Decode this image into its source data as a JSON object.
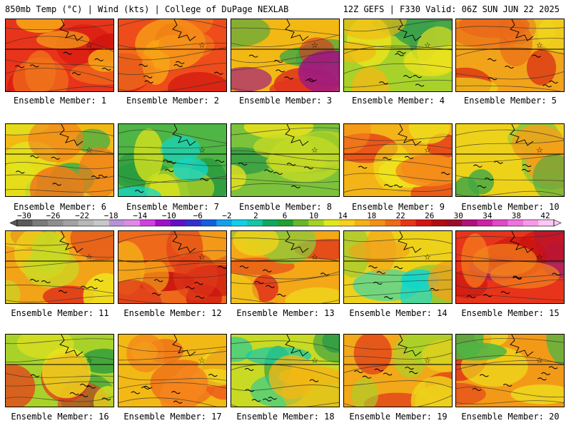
{
  "header": {
    "left_title": "850mb Temp (°C) | Wind (kts) | College of DuPage NEXLAB",
    "right_title": "12Z GEFS | F330 Valid: 06Z SUN JUN 22 2025"
  },
  "panels": [
    {
      "label": "Ensemble Member: 1",
      "base": "#e8341a",
      "accents": [
        "#d4150f",
        "#f0761a",
        "#f7a616"
      ]
    },
    {
      "label": "Ensemble Member: 2",
      "base": "#ee4c1a",
      "accents": [
        "#d0110f",
        "#f7a616",
        "#f4851c"
      ]
    },
    {
      "label": "Ensemble Member: 3",
      "base": "#f2b814",
      "accents": [
        "#3ca644",
        "#e0331e",
        "#a01a7f"
      ]
    },
    {
      "label": "Ensemble Member: 4",
      "base": "#a8d22a",
      "accents": [
        "#3aa04a",
        "#eee31c",
        "#f2b814"
      ]
    },
    {
      "label": "Ensemble Member: 5",
      "base": "#f1a31a",
      "accents": [
        "#d61a13",
        "#f0d51c",
        "#ea6a1a"
      ]
    },
    {
      "label": "Ensemble Member: 6",
      "base": "#f2b814",
      "accents": [
        "#3fae45",
        "#e1e51c",
        "#f07b1a"
      ]
    },
    {
      "label": "Ensemble Member: 7",
      "base": "#4fb544",
      "accents": [
        "#2a9b3f",
        "#d4e01e",
        "#13d6c9"
      ]
    },
    {
      "label": "Ensemble Member: 8",
      "base": "#7cc23a",
      "accents": [
        "#2f9c45",
        "#eee31c",
        "#c4da24"
      ]
    },
    {
      "label": "Ensemble Member: 9",
      "base": "#f4b316",
      "accents": [
        "#e53a1a",
        "#eee31c",
        "#f58a1a"
      ]
    },
    {
      "label": "Ensemble Member: 10",
      "base": "#eed21a",
      "accents": [
        "#8cc839",
        "#f2a11a",
        "#44a844"
      ]
    },
    {
      "label": "Ensemble Member: 11",
      "base": "#f2a318",
      "accents": [
        "#e0341a",
        "#eee31c",
        "#c8d823"
      ]
    },
    {
      "label": "Ensemble Member: 12",
      "base": "#ee6a1a",
      "accents": [
        "#c8100f",
        "#f4a818",
        "#e03a1a"
      ]
    },
    {
      "label": "Ensemble Member: 13",
      "base": "#f4a818",
      "accents": [
        "#e0341a",
        "#8cc839",
        "#eed21a"
      ]
    },
    {
      "label": "Ensemble Member: 14",
      "base": "#eed21a",
      "accents": [
        "#8cc839",
        "#13d6c9",
        "#f2a11a"
      ]
    },
    {
      "label": "Ensemble Member: 15",
      "base": "#e8341a",
      "accents": [
        "#9c1a7a",
        "#c8100f",
        "#f4851c"
      ]
    },
    {
      "label": "Ensemble Member: 16",
      "base": "#a8d22a",
      "accents": [
        "#2a9b3f",
        "#e8341a",
        "#eee31c"
      ]
    },
    {
      "label": "Ensemble Member: 17",
      "base": "#f2b814",
      "accents": [
        "#ee5c1a",
        "#eee31c",
        "#f4851c"
      ]
    },
    {
      "label": "Ensemble Member: 18",
      "base": "#c8da23",
      "accents": [
        "#2f9c45",
        "#13cba8",
        "#f2b814"
      ]
    },
    {
      "label": "Ensemble Member: 19",
      "base": "#f2a818",
      "accents": [
        "#e0341a",
        "#a8d22a",
        "#eed21a"
      ]
    },
    {
      "label": "Ensemble Member: 20",
      "base": "#f29a18",
      "accents": [
        "#e0341a",
        "#eee31c",
        "#4fb544"
      ]
    }
  ],
  "colorbar": {
    "ticks": [
      "−30",
      "−26",
      "−22",
      "−18",
      "−14",
      "−10",
      "−6",
      "−2",
      "2",
      "6",
      "10",
      "14",
      "18",
      "22",
      "26",
      "30",
      "34",
      "38",
      "42"
    ],
    "colors": [
      "#5a5a5a",
      "#7a7a7a",
      "#8e8e8e",
      "#a2a2a2",
      "#b8b8b8",
      "#c8c8c8",
      "#b892d6",
      "#e08ae8",
      "#d040e0",
      "#a010c8",
      "#6010c8",
      "#3030d0",
      "#1060e0",
      "#10a0f0",
      "#10d0e8",
      "#10c8a8",
      "#10a860",
      "#20a030",
      "#68b828",
      "#a8d028",
      "#e0e81c",
      "#f8d018",
      "#f4b014",
      "#f29014",
      "#ee6a14",
      "#e83414",
      "#d41410",
      "#b40c0c",
      "#9c0c28",
      "#b0107a",
      "#d020a8",
      "#e048c8",
      "#f070e0",
      "#f898e8",
      "#fcc8f4"
    ]
  }
}
